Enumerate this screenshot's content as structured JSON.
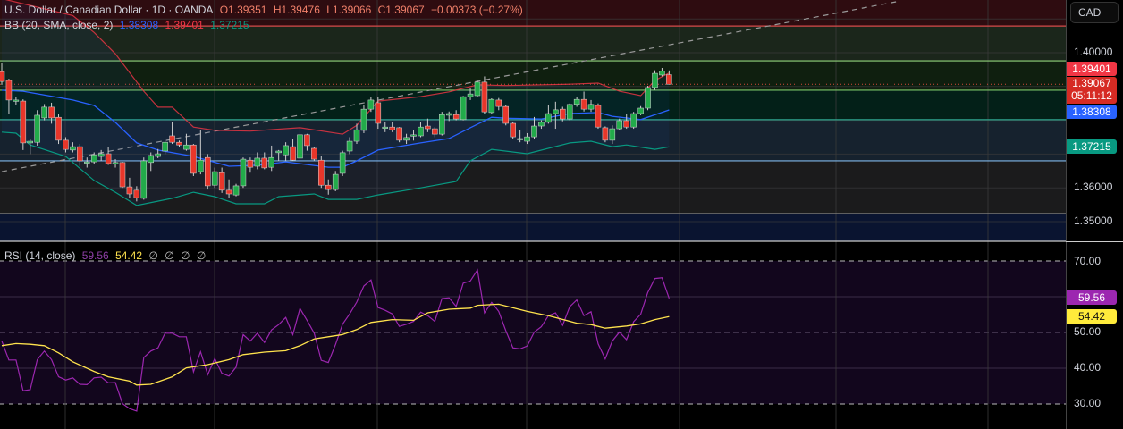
{
  "header": {
    "symbol_title": "U.S. Dollar / Canadian Dollar · 1D · OANDA",
    "open": "O1.39351",
    "high": "H1.39476",
    "low": "L1.39066",
    "close": "C1.39067",
    "change": "−0.00373 (−0.27%)",
    "bb_label": "BB (20, SMA, close, 2)",
    "bb_basis": "1.38308",
    "bb_upper": "1.39401",
    "bb_lower": "1.37215",
    "rsi_label": "RSI (14, close)",
    "rsi_value": "59.56",
    "rsi_ma_value": "54.42",
    "rsi_extra": [
      "∅",
      "∅",
      "∅",
      "∅"
    ]
  },
  "axis": {
    "currency_button": "CAD",
    "price_ticks": [
      "1.40000",
      "1.36000",
      "1.35000"
    ],
    "price_tick_values": [
      1.4,
      1.36,
      1.35
    ],
    "badges": {
      "upper": "1.39401",
      "last": "1.39067",
      "countdown": "05:11:12",
      "basis": "1.38308",
      "lower": "1.37215"
    },
    "rsi_ticks": [
      "70.00",
      "50.00",
      "40.00",
      "30.00"
    ],
    "rsi_tick_values": [
      70,
      50,
      40,
      30
    ],
    "rsi_badges": {
      "rsi": "59.56",
      "ma": "54.42"
    }
  },
  "colors": {
    "up": "#22ab4a",
    "down": "#e8362a",
    "bb_basis": "#2962ff",
    "bb_upper": "#f23645",
    "bb_lower": "#089981",
    "rsi": "#9c27b0",
    "rsi_ma": "#ffe34d",
    "last_badge": "#d62b24"
  },
  "chart_data": [
    {
      "type": "candlestick",
      "title": "U.S. Dollar / Canadian Dollar · 1D · OANDA",
      "ylim": [
        1.345,
        1.4185
      ],
      "ohlc": [
        [
          1.3944,
          1.3971,
          1.3905,
          1.3915
        ],
        [
          1.3918,
          1.3923,
          1.382,
          1.386
        ],
        [
          1.386,
          1.387,
          1.3845,
          1.386
        ],
        [
          1.3857,
          1.3862,
          1.3712,
          1.3733
        ],
        [
          1.3733,
          1.3745,
          1.37,
          1.3738
        ],
        [
          1.3735,
          1.383,
          1.3725,
          1.3815
        ],
        [
          1.3807,
          1.3848,
          1.38,
          1.3839
        ],
        [
          1.3839,
          1.3852,
          1.379,
          1.3807
        ],
        [
          1.3809,
          1.382,
          1.373,
          1.3741
        ],
        [
          1.3741,
          1.375,
          1.3705,
          1.3714
        ],
        [
          1.3712,
          1.3735,
          1.3705,
          1.3722
        ],
        [
          1.3722,
          1.373,
          1.3665,
          1.368
        ],
        [
          1.3677,
          1.369,
          1.366,
          1.3677
        ],
        [
          1.3677,
          1.3705,
          1.367,
          1.3698
        ],
        [
          1.3693,
          1.3712,
          1.368,
          1.3701
        ],
        [
          1.3701,
          1.372,
          1.3668,
          1.3672
        ],
        [
          1.3675,
          1.3685,
          1.366,
          1.3675
        ],
        [
          1.3675,
          1.3677,
          1.36,
          1.3603
        ],
        [
          1.3603,
          1.363,
          1.357,
          1.3582
        ],
        [
          1.3593,
          1.3605,
          1.356,
          1.3571
        ],
        [
          1.3569,
          1.369,
          1.3565,
          1.368
        ],
        [
          1.3675,
          1.3705,
          1.365,
          1.3696
        ],
        [
          1.3693,
          1.3715,
          1.3688,
          1.3701
        ],
        [
          1.3709,
          1.374,
          1.37,
          1.3735
        ],
        [
          1.3754,
          1.3795,
          1.373,
          1.3735
        ],
        [
          1.3735,
          1.374,
          1.372,
          1.3727
        ],
        [
          1.3714,
          1.376,
          1.371,
          1.3727
        ],
        [
          1.3727,
          1.373,
          1.3635,
          1.3643
        ],
        [
          1.3648,
          1.377,
          1.364,
          1.3682
        ],
        [
          1.369,
          1.37,
          1.3595,
          1.3606
        ],
        [
          1.3608,
          1.366,
          1.36,
          1.3648
        ],
        [
          1.3645,
          1.366,
          1.3585,
          1.3593
        ],
        [
          1.3593,
          1.3625,
          1.357,
          1.3582
        ],
        [
          1.3579,
          1.3612,
          1.3575,
          1.3606
        ],
        [
          1.3606,
          1.369,
          1.36,
          1.3685
        ],
        [
          1.3682,
          1.369,
          1.3645,
          1.3661
        ],
        [
          1.3664,
          1.3705,
          1.3655,
          1.3688
        ],
        [
          1.3688,
          1.3705,
          1.3655,
          1.3659
        ],
        [
          1.3661,
          1.3725,
          1.365,
          1.369
        ],
        [
          1.3704,
          1.3712,
          1.368,
          1.3709
        ],
        [
          1.3698,
          1.3735,
          1.368,
          1.3725
        ],
        [
          1.3722,
          1.3745,
          1.368,
          1.3682
        ],
        [
          1.3688,
          1.3778,
          1.368,
          1.3757
        ],
        [
          1.3757,
          1.376,
          1.371,
          1.3725
        ],
        [
          1.3717,
          1.372,
          1.368,
          1.3685
        ],
        [
          1.3682,
          1.3695,
          1.36,
          1.3608
        ],
        [
          1.3608,
          1.3625,
          1.358,
          1.3595
        ],
        [
          1.3595,
          1.365,
          1.359,
          1.364
        ],
        [
          1.3643,
          1.371,
          1.3635,
          1.3704
        ],
        [
          1.3709,
          1.375,
          1.37,
          1.3738
        ],
        [
          1.3738,
          1.379,
          1.373,
          1.3772
        ],
        [
          1.377,
          1.3845,
          1.3762,
          1.3833
        ],
        [
          1.3833,
          1.387,
          1.3825,
          1.386
        ],
        [
          1.3852,
          1.387,
          1.3775,
          1.3791
        ],
        [
          1.378,
          1.3795,
          1.3765,
          1.378
        ],
        [
          1.378,
          1.3795,
          1.3765,
          1.3772
        ],
        [
          1.3778,
          1.378,
          1.3735,
          1.3741
        ],
        [
          1.3741,
          1.376,
          1.373,
          1.3749
        ],
        [
          1.3754,
          1.377,
          1.374,
          1.3757
        ],
        [
          1.3754,
          1.3795,
          1.375,
          1.378
        ],
        [
          1.3783,
          1.3805,
          1.3765,
          1.3775
        ],
        [
          1.3775,
          1.378,
          1.375,
          1.3759
        ],
        [
          1.3759,
          1.3825,
          1.3755,
          1.3817
        ],
        [
          1.3815,
          1.3826,
          1.3798,
          1.382
        ],
        [
          1.3817,
          1.383,
          1.38,
          1.3804
        ],
        [
          1.3802,
          1.3872,
          1.38,
          1.387
        ],
        [
          1.387,
          1.3895,
          1.386,
          1.3878
        ],
        [
          1.3873,
          1.3917,
          1.387,
          1.3913
        ],
        [
          1.3913,
          1.393,
          1.382,
          1.3825
        ],
        [
          1.3823,
          1.3865,
          1.382,
          1.3862
        ],
        [
          1.386,
          1.3866,
          1.383,
          1.3841
        ],
        [
          1.3841,
          1.3845,
          1.3785,
          1.3791
        ],
        [
          1.3791,
          1.3795,
          1.3745,
          1.3751
        ],
        [
          1.3746,
          1.377,
          1.3735,
          1.3746
        ],
        [
          1.3738,
          1.3762,
          1.373,
          1.3751
        ],
        [
          1.3751,
          1.381,
          1.3745,
          1.3783
        ],
        [
          1.3783,
          1.38,
          1.3775,
          1.3794
        ],
        [
          1.3794,
          1.3845,
          1.379,
          1.382
        ],
        [
          1.382,
          1.3855,
          1.3775,
          1.3831
        ],
        [
          1.3833,
          1.384,
          1.3797,
          1.3804
        ],
        [
          1.3804,
          1.385,
          1.38,
          1.3847
        ],
        [
          1.3847,
          1.387,
          1.384,
          1.3862
        ],
        [
          1.3862,
          1.3885,
          1.3826,
          1.3833
        ],
        [
          1.3833,
          1.386,
          1.3825,
          1.3847
        ],
        [
          1.3844,
          1.385,
          1.3775,
          1.378
        ],
        [
          1.3778,
          1.3782,
          1.3735,
          1.3741
        ],
        [
          1.3741,
          1.3785,
          1.373,
          1.3775
        ],
        [
          1.3775,
          1.3805,
          1.377,
          1.3799
        ],
        [
          1.3799,
          1.382,
          1.3775,
          1.378
        ],
        [
          1.378,
          1.3825,
          1.3775,
          1.382
        ],
        [
          1.382,
          1.3842,
          1.3815,
          1.3836
        ],
        [
          1.3836,
          1.3902,
          1.383,
          1.3897
        ],
        [
          1.3897,
          1.3948,
          1.389,
          1.3939
        ],
        [
          1.3934,
          1.3955,
          1.393,
          1.3945
        ],
        [
          1.39351,
          1.39476,
          1.39066,
          1.39067
        ]
      ],
      "bb_upper": [
        [
          0,
          1.416
        ],
        [
          10,
          1.411
        ],
        [
          13,
          1.406
        ],
        [
          16,
          1.3997
        ],
        [
          20,
          1.3886
        ],
        [
          22,
          1.3839
        ],
        [
          24,
          1.3839
        ],
        [
          27,
          1.378
        ],
        [
          30,
          1.377
        ],
        [
          35,
          1.3768
        ],
        [
          42,
          1.3778
        ],
        [
          48,
          1.3759
        ],
        [
          50,
          1.3785
        ],
        [
          53,
          1.3857
        ],
        [
          59,
          1.387
        ],
        [
          63,
          1.3884
        ],
        [
          67,
          1.3905
        ],
        [
          71,
          1.3903
        ],
        [
          80,
          1.3907
        ],
        [
          84,
          1.391
        ],
        [
          87,
          1.3886
        ],
        [
          90,
          1.3873
        ],
        [
          92,
          1.3918
        ],
        [
          94,
          1.39401
        ]
      ],
      "bb_basis": [
        [
          0,
          1.3889
        ],
        [
          3,
          1.3886
        ],
        [
          10,
          1.386
        ],
        [
          13,
          1.3844
        ],
        [
          16,
          1.3794
        ],
        [
          19,
          1.3733
        ],
        [
          22,
          1.3712
        ],
        [
          27,
          1.3693
        ],
        [
          32,
          1.3664
        ],
        [
          36,
          1.3667
        ],
        [
          40,
          1.3677
        ],
        [
          46,
          1.3661
        ],
        [
          48,
          1.3661
        ],
        [
          50,
          1.368
        ],
        [
          53,
          1.3712
        ],
        [
          59,
          1.3733
        ],
        [
          63,
          1.3746
        ],
        [
          66,
          1.3778
        ],
        [
          69,
          1.3809
        ],
        [
          71,
          1.3806
        ],
        [
          76,
          1.3804
        ],
        [
          80,
          1.382
        ],
        [
          84,
          1.3823
        ],
        [
          86,
          1.3812
        ],
        [
          90,
          1.3802
        ],
        [
          94,
          1.38308
        ]
      ],
      "bb_lower": [
        [
          0,
          1.3765
        ],
        [
          2,
          1.3762
        ],
        [
          4,
          1.3727
        ],
        [
          9,
          1.3693
        ],
        [
          13,
          1.3622
        ],
        [
          16,
          1.3587
        ],
        [
          19,
          1.3548
        ],
        [
          24,
          1.3569
        ],
        [
          27,
          1.3587
        ],
        [
          30,
          1.3574
        ],
        [
          33,
          1.3553
        ],
        [
          37,
          1.3553
        ],
        [
          39,
          1.3574
        ],
        [
          44,
          1.3582
        ],
        [
          46,
          1.3566
        ],
        [
          50,
          1.3566
        ],
        [
          53,
          1.3579
        ],
        [
          59,
          1.36
        ],
        [
          64,
          1.3619
        ],
        [
          66,
          1.368
        ],
        [
          69,
          1.3714
        ],
        [
          74,
          1.3701
        ],
        [
          80,
          1.3733
        ],
        [
          83,
          1.3738
        ],
        [
          86,
          1.3722
        ],
        [
          88,
          1.3727
        ],
        [
          92,
          1.3714
        ],
        [
          94,
          1.37215
        ]
      ],
      "horizontal_levels": [
        1.4079,
        1.3976,
        1.3889,
        1.3802,
        1.368,
        1.3524
      ],
      "zone_colors": [
        "#2e0c10",
        "#1b261b",
        "#0f1f0f",
        "#032018",
        "#16222e",
        "#1b1b1c",
        "#0a1430"
      ],
      "level_colors": [
        "#d84a4a",
        "#8fd17a",
        "#7ec86a",
        "#2fa690",
        "#7fb6e6",
        "#888888"
      ],
      "trendline": [
        [
          0,
          1.3648
        ],
        [
          126,
          1.4151
        ]
      ],
      "last_price": 1.39067,
      "grid": true
    },
    {
      "type": "line",
      "title": "RSI (14, close)",
      "ylim": [
        24.5,
        75.5
      ],
      "bands": [
        70,
        50,
        30
      ],
      "rsi": [
        47.6,
        42.3,
        42.3,
        33.7,
        34,
        42.4,
        44.8,
        42.4,
        37.6,
        36.7,
        37.3,
        35.5,
        35.4,
        37.3,
        37.5,
        35.9,
        36,
        30.1,
        28.7,
        28,
        43,
        44.8,
        45.7,
        49.8,
        49.8,
        48.8,
        48.8,
        39,
        44.6,
        38.2,
        42.7,
        38.6,
        37.8,
        40.3,
        49.4,
        47.6,
        49.8,
        47.2,
        50.7,
        52.2,
        54.2,
        49.4,
        56.7,
        53.4,
        49.8,
        42.2,
        41.6,
        46.6,
        52.3,
        55.2,
        58.5,
        63,
        64.7,
        57,
        56.2,
        55.2,
        51.7,
        52.3,
        53.1,
        55.7,
        54.7,
        53.1,
        59.5,
        59.7,
        57.3,
        63.8,
        64.4,
        67.5,
        55.5,
        58.4,
        55.9,
        50.5,
        45.7,
        45.4,
        46.2,
        50.1,
        51.6,
        54.7,
        55.5,
        52,
        57.2,
        59.1,
        54.7,
        55.8,
        46.8,
        42.6,
        47.6,
        50.1,
        48,
        53,
        55.1,
        61.2,
        65.1,
        65.3,
        59.56
      ],
      "rsi_ma": [
        [
          0,
          46.3
        ],
        [
          2,
          46.9
        ],
        [
          4,
          46.7
        ],
        [
          6,
          46.3
        ],
        [
          8,
          44.3
        ],
        [
          10,
          41.8
        ],
        [
          13,
          39.1
        ],
        [
          15,
          37.6
        ],
        [
          18,
          36.4
        ],
        [
          19,
          35.3
        ],
        [
          21,
          35.5
        ],
        [
          24,
          37.6
        ],
        [
          26,
          40.1
        ],
        [
          29,
          41
        ],
        [
          32,
          42.4
        ],
        [
          34,
          43.8
        ],
        [
          37,
          44.5
        ],
        [
          40,
          44.9
        ],
        [
          42,
          46.3
        ],
        [
          44,
          48.2
        ],
        [
          46,
          48.8
        ],
        [
          48,
          49.4
        ],
        [
          50,
          50.8
        ],
        [
          52,
          52.8
        ],
        [
          55,
          53.6
        ],
        [
          58,
          53.4
        ],
        [
          60,
          55.5
        ],
        [
          63,
          56.5
        ],
        [
          66,
          56.8
        ],
        [
          67,
          57.6
        ],
        [
          70,
          57.9
        ],
        [
          74,
          55.9
        ],
        [
          77,
          54.7
        ],
        [
          81,
          52.6
        ],
        [
          83,
          52.2
        ],
        [
          85,
          51.2
        ],
        [
          88,
          51.8
        ],
        [
          90,
          52.4
        ],
        [
          92,
          53.6
        ],
        [
          94,
          54.42
        ]
      ],
      "grid": true
    }
  ]
}
